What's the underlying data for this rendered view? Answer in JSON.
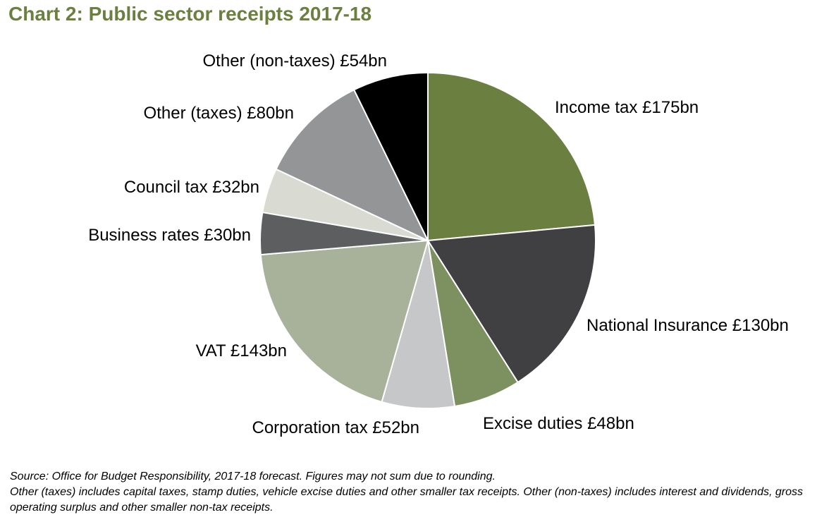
{
  "title": "Chart 2: Public sector receipts 2017-18",
  "chart_data": {
    "type": "pie",
    "title": "Chart 2: Public sector receipts 2017-18",
    "unit": "£bn",
    "slices": [
      {
        "name": "Income tax",
        "value": 175,
        "label": "Income tax £175bn",
        "color": "#6b8040"
      },
      {
        "name": "National Insurance",
        "value": 130,
        "label": "National Insurance £130bn",
        "color": "#404042"
      },
      {
        "name": "Excise duties",
        "value": 48,
        "label": "Excise duties £48bn",
        "color": "#7d9160"
      },
      {
        "name": "Corporation tax",
        "value": 52,
        "label": "Corporation tax £52bn",
        "color": "#c6c7c9"
      },
      {
        "name": "VAT",
        "value": 143,
        "label": "VAT £143bn",
        "color": "#a8b29a"
      },
      {
        "name": "Business rates",
        "value": 30,
        "label": "Business rates £30bn",
        "color": "#5d5e60"
      },
      {
        "name": "Council tax",
        "value": 32,
        "label": "Council tax £32bn",
        "color": "#d9dbd3"
      },
      {
        "name": "Other (taxes)",
        "value": 80,
        "label": "Other (taxes) £80bn",
        "color": "#949597"
      },
      {
        "name": "Other (non-taxes)",
        "value": 54,
        "label": "Other (non-taxes) £54bn",
        "color": "#000000"
      }
    ],
    "start": "12 o'clock",
    "direction": "clockwise"
  },
  "footnotes": {
    "source": "Source: Office for Budget Responsibility, 2017-18 forecast. Figures may not sum due to rounding.",
    "note": "Other (taxes) includes capital taxes, stamp duties, vehicle excise duties and other smaller tax receipts. Other (non-taxes) includes interest and dividends, gross operating surplus and other smaller non-tax receipts."
  }
}
